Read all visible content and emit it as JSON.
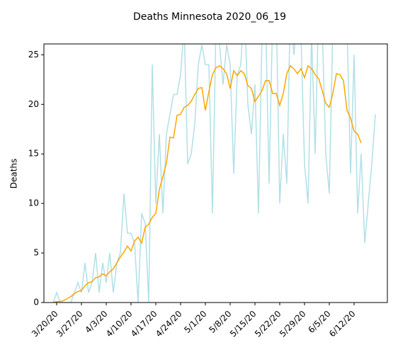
{
  "chart_data": {
    "type": "line",
    "title": "Deaths Minnesota 2020_06_19",
    "ylabel": "Deaths",
    "categories": [
      null,
      "3/20/20",
      null,
      null,
      null,
      null,
      null,
      null,
      "3/27/20",
      null,
      null,
      null,
      null,
      null,
      null,
      "4/3/20",
      null,
      null,
      null,
      null,
      null,
      null,
      "4/10/20",
      null,
      null,
      null,
      null,
      null,
      null,
      "4/17/20",
      null,
      null,
      null,
      null,
      null,
      null,
      "4/24/20",
      null,
      null,
      null,
      null,
      null,
      null,
      "5/1/20",
      null,
      null,
      null,
      null,
      null,
      null,
      "5/8/20",
      null,
      null,
      null,
      null,
      null,
      null,
      "5/15/20",
      null,
      null,
      null,
      null,
      null,
      null,
      "5/22/20",
      null,
      null,
      null,
      null,
      null,
      null,
      "5/29/20",
      null,
      null,
      null,
      null,
      null,
      null,
      "6/5/20",
      null,
      null,
      null,
      null,
      null,
      null,
      "6/12/20",
      null,
      null,
      null,
      null,
      null,
      null
    ],
    "series": [
      {
        "color": "#b0e0e6",
        "values": [
          0,
          1,
          0,
          0,
          0,
          0,
          1,
          2,
          1,
          4,
          1,
          2,
          5,
          1,
          4,
          2,
          5,
          1,
          4,
          5,
          11,
          7,
          7,
          6,
          0,
          9,
          8,
          0,
          24,
          10,
          17,
          9,
          17,
          19,
          21,
          21,
          23,
          28,
          14,
          15,
          18,
          24,
          26,
          24,
          24,
          9,
          28,
          26,
          22,
          26,
          24,
          13,
          23,
          24,
          30,
          20,
          17,
          22,
          9,
          27,
          29,
          12,
          29,
          30,
          10,
          17,
          12,
          30,
          25,
          29,
          27,
          14,
          10,
          27,
          15,
          30,
          28,
          15,
          11,
          28,
          28,
          30,
          28,
          28,
          13,
          25,
          9,
          15,
          6,
          10,
          14,
          19
        ]
      },
      {
        "color": "#ffa500",
        "values": [
          0,
          0.1,
          0.1,
          0.2,
          0.4,
          0.6,
          0.9,
          1.1,
          1.2,
          1.7,
          2.0,
          2.1,
          2.5,
          2.6,
          2.9,
          2.7,
          3.1,
          3.4,
          4.0,
          4.6,
          5.1,
          5.7,
          5.2,
          6.2,
          6.6,
          6.0,
          7.6,
          7.9,
          8.6,
          9.0,
          11.4,
          12.7,
          14.1,
          16.7,
          16.6,
          18.9,
          19.0,
          19.7,
          19.9,
          20.3,
          21.0,
          21.6,
          21.7,
          19.4,
          21.3,
          23.0,
          23.7,
          23.9,
          23.6,
          23.1,
          21.6,
          23.4,
          22.9,
          23.4,
          23.1,
          21.9,
          21.6,
          20.3,
          20.8,
          21.4,
          22.4,
          22.4,
          21.1,
          21.1,
          19.9,
          21.1,
          23.1,
          23.9,
          23.6,
          23.1,
          23.6,
          22.7,
          23.9,
          23.6,
          23.0,
          22.6,
          21.4,
          20.1,
          19.7,
          21.1,
          23.1,
          23.0,
          22.4,
          19.4,
          18.6,
          17.3,
          17.0,
          16.1,
          null,
          null,
          null,
          null
        ]
      }
    ],
    "ylim": [
      0,
      26.1
    ],
    "yticks": [
      0,
      5,
      10,
      15,
      20,
      25
    ]
  }
}
